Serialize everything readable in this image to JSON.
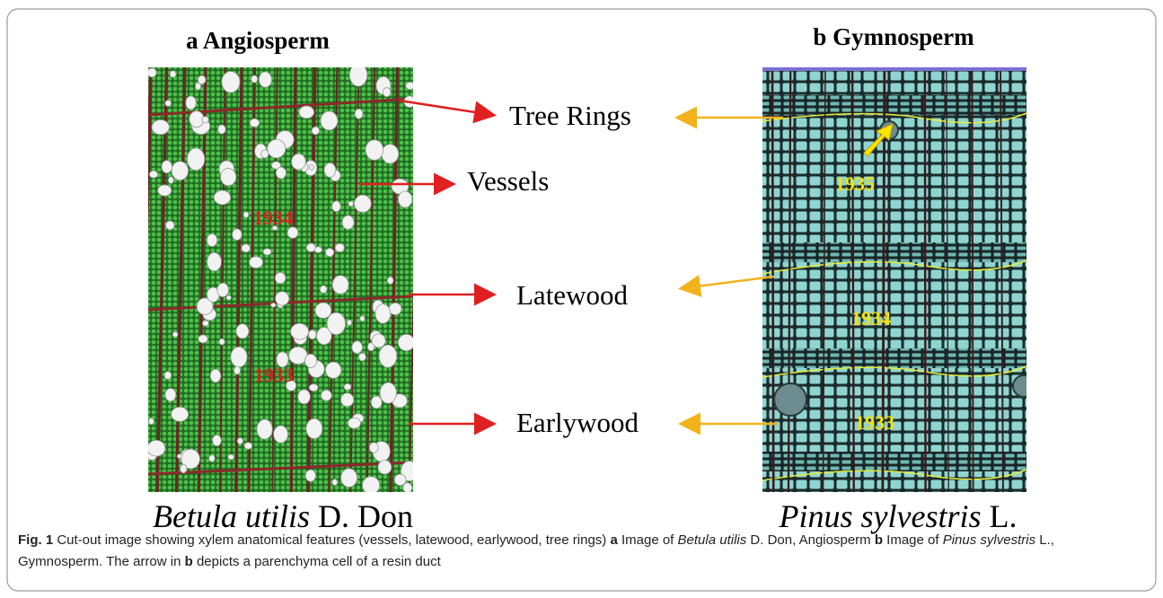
{
  "panels": [
    {
      "letter": "a",
      "title": "Angiosperm",
      "years": [
        "1934",
        "1933"
      ],
      "species": "Betula utilis",
      "authority": "D. Don"
    },
    {
      "letter": "b",
      "title": "Gymnosperm",
      "years": [
        "1935",
        "1934",
        "1933"
      ],
      "species": "Pinus sylvestris",
      "authority": "L."
    }
  ],
  "features": [
    "Tree Rings",
    "Vessels",
    "Latewood",
    "Earlywood"
  ],
  "caption": {
    "label": "Fig. 1",
    "segments": [
      {
        "text": "Cut-out image showing xylem anatomical features (vessels, latewood, earlywood, tree rings)",
        "style": "normal"
      },
      {
        "text": "a",
        "style": "bold"
      },
      {
        "text": "Image of",
        "style": "normal"
      },
      {
        "text": "Betula utilis",
        "style": "italic"
      },
      {
        "text": "D. Don, Angiosperm",
        "style": "normal"
      },
      {
        "text": "b",
        "style": "bold"
      },
      {
        "text": "Image of",
        "style": "normal"
      },
      {
        "text": "Pinus sylvestris",
        "style": "italic"
      },
      {
        "text": "L., Gymnosperm. The arrow in",
        "style": "normal"
      },
      {
        "text": "b",
        "style": "bold"
      },
      {
        "text": "depicts a parenchyma cell of a resin duct",
        "style": "normal"
      }
    ]
  }
}
